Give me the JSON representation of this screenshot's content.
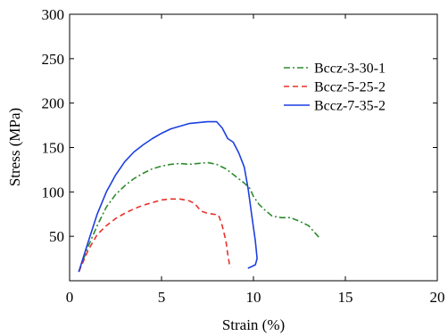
{
  "chart_data": {
    "type": "line",
    "title": "",
    "xlabel": "Strain (%)",
    "ylabel": "Stress (MPa)",
    "xlim": [
      0,
      20
    ],
    "ylim": [
      0,
      300
    ],
    "xticks": [
      0,
      5,
      10,
      15,
      20
    ],
    "yticks": [
      50,
      100,
      150,
      200,
      250,
      300
    ],
    "xtick_labels": [
      "0",
      "5",
      "10",
      "15",
      "20"
    ],
    "ytick_labels": [
      "50",
      "100",
      "150",
      "200",
      "250",
      "300"
    ],
    "grid": false,
    "legend_position": "top-right",
    "series": [
      {
        "name": "Bccz-3-30-1",
        "color": "#2e8b2e",
        "dash": "dash-dot",
        "x": [
          0.5,
          1.0,
          1.5,
          2.0,
          2.5,
          3.0,
          3.5,
          4.0,
          4.5,
          5.0,
          5.5,
          6.0,
          6.5,
          7.0,
          7.5,
          8.0,
          8.5,
          9.0,
          9.5,
          9.8,
          10.0,
          10.3,
          10.6,
          11.0,
          11.5,
          12.0,
          12.5,
          13.0,
          13.3,
          13.6
        ],
        "y": [
          10,
          38,
          62,
          83,
          97,
          107,
          115,
          121,
          126,
          129,
          131,
          132,
          131,
          132,
          133,
          131,
          126,
          118,
          110,
          104,
          95,
          86,
          80,
          73,
          71,
          71,
          67,
          62,
          55,
          48
        ]
      },
      {
        "name": "Bccz-5-25-2",
        "color": "#e8312a",
        "dash": "dashed",
        "x": [
          0.5,
          1.0,
          1.5,
          2.0,
          2.5,
          3.0,
          3.5,
          4.0,
          4.5,
          5.0,
          5.5,
          6.0,
          6.5,
          6.8,
          7.0,
          7.2,
          7.5,
          7.8,
          8.1,
          8.3,
          8.5,
          8.6,
          8.7,
          8.8
        ],
        "y": [
          10,
          34,
          52,
          62,
          70,
          76,
          81,
          85,
          88,
          91,
          92,
          92,
          90,
          87,
          82,
          78,
          76,
          75,
          74,
          62,
          45,
          30,
          18,
          15
        ]
      },
      {
        "name": "Bccz-7-35-2",
        "color": "#1c3fe0",
        "dash": "solid",
        "x": [
          0.5,
          1.0,
          1.5,
          2.0,
          2.5,
          3.0,
          3.5,
          4.0,
          4.5,
          5.0,
          5.5,
          6.0,
          6.5,
          7.0,
          7.5,
          8.0,
          8.3,
          8.6,
          8.9,
          9.2,
          9.5,
          9.7,
          9.8,
          9.9,
          10.0,
          10.1,
          10.2,
          10.1,
          9.9,
          9.7
        ],
        "y": [
          10,
          43,
          75,
          100,
          119,
          134,
          145,
          153,
          160,
          166,
          171,
          174,
          177,
          178,
          179,
          179,
          172,
          160,
          156,
          144,
          128,
          105,
          90,
          75,
          60,
          45,
          25,
          18,
          16,
          14
        ]
      }
    ]
  }
}
